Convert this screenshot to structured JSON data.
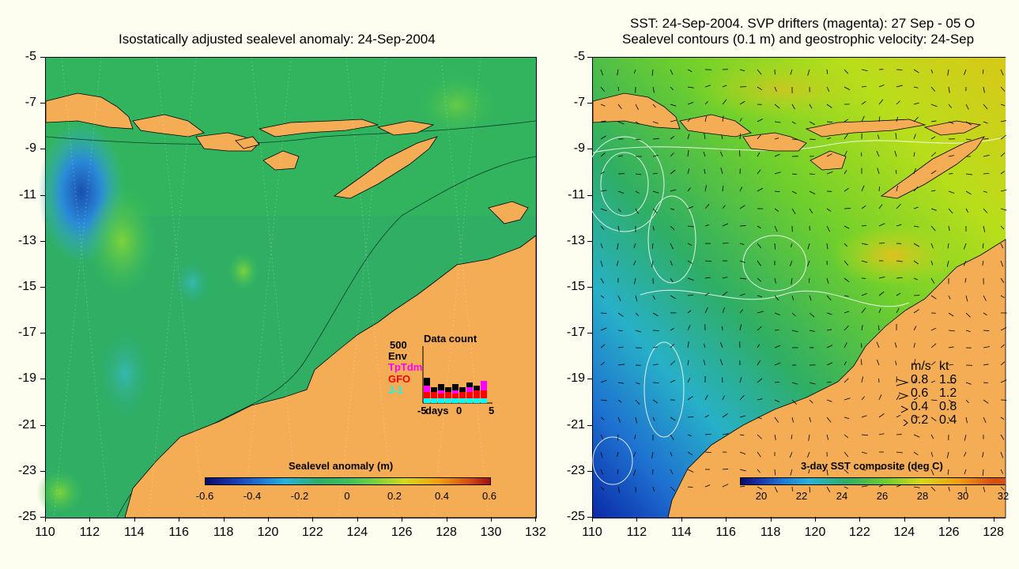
{
  "left_panel": {
    "title": "Isostatically adjusted sealevel anomaly: 24-Sep-2004",
    "colorbar": {
      "title": "Sealevel anomaly (m)",
      "ticks": [
        "-0.6",
        "-0.4",
        "-0.2",
        "0",
        "0.2",
        "0.4",
        "0.6"
      ]
    },
    "inset": {
      "title": "Data count",
      "ymax": "500",
      "satellites": [
        {
          "name": "Env",
          "color": "#000000"
        },
        {
          "name": "TpTdm",
          "color": "#ff00ff"
        },
        {
          "name": "GFO",
          "color": "#ff0000"
        },
        {
          "name": "J-1",
          "color": "#00ffff"
        }
      ],
      "xlabels": [
        "-5",
        "days",
        "0",
        "5"
      ]
    }
  },
  "right_panel": {
    "title_line1": "SST: 24-Sep-2004. SVP drifters (magenta): 27 Sep - 05 O",
    "title_line2": "Sealevel contours (0.1 m) and geostrophic velocity: 24-Sep",
    "colorbar": {
      "title": "3-day SST composite (deg C)",
      "ticks": [
        "20",
        "22",
        "24",
        "26",
        "28",
        "30",
        "32"
      ]
    },
    "velocity_legend": {
      "header_ms": "m/s",
      "header_kt": "kt",
      "rows": [
        {
          "ms": "0.8",
          "kt": "1.6"
        },
        {
          "ms": "0.6",
          "kt": "1.2"
        },
        {
          "ms": "0.4",
          "kt": "0.8"
        },
        {
          "ms": "0.2",
          "kt": "0.4"
        }
      ]
    }
  },
  "axes": {
    "y_ticks": [
      "-5",
      "-7",
      "-9",
      "-11",
      "-13",
      "-15",
      "-17",
      "-19",
      "-21",
      "-23",
      "-25"
    ],
    "x_ticks_left": [
      "110",
      "112",
      "114",
      "116",
      "118",
      "120",
      "122",
      "124",
      "126",
      "128",
      "130",
      "132"
    ],
    "x_ticks_right": [
      "110",
      "112",
      "114",
      "116",
      "118",
      "120",
      "122",
      "124",
      "126",
      "128"
    ]
  },
  "colors": {
    "land": "#f5ad55",
    "background": "#fdfdf0"
  }
}
